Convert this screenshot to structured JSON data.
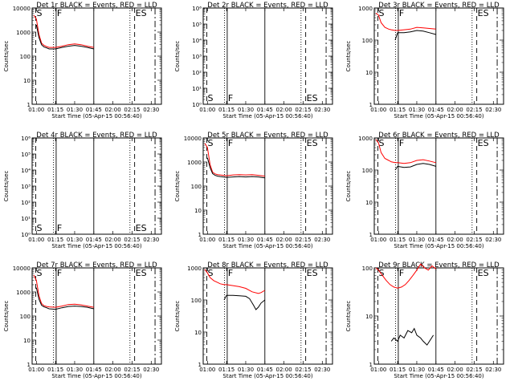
{
  "colors": {
    "events": "#000000",
    "lld": "#ff0000",
    "frame": "#000000"
  },
  "chart_data": [
    {
      "type": "line",
      "title": "Det 1r BLACK = Events, RED = LLD",
      "xlabel": "Start Time (05-Apr-15 00:56:40)",
      "ylabel": "Counts/sec",
      "xlim": [
        "00:56:40",
        "02:38:00"
      ],
      "yscale": "log",
      "ylim": [
        1,
        10000
      ],
      "x_ticks": [
        "01:00",
        "01:15",
        "01:30",
        "01:45",
        "02:00",
        "02:15",
        "02:30"
      ],
      "y_ticks": [
        "1",
        "10",
        "100",
        "1000",
        "10000"
      ],
      "markers": [
        {
          "label": "S",
          "time": "00:59:30"
        },
        {
          "label": "F",
          "time": "01:15:30"
        },
        {
          "label": "ES",
          "time": "02:17:00"
        }
      ],
      "series": [
        {
          "name": "Events",
          "x": [
            "01:00",
            "01:02",
            "01:04",
            "01:06",
            "01:08",
            "01:10",
            "01:15",
            "01:20",
            "01:25",
            "01:30",
            "01:35",
            "01:40",
            "01:45"
          ],
          "y": [
            2000,
            600,
            300,
            240,
            220,
            200,
            200,
            230,
            260,
            280,
            260,
            230,
            200
          ]
        },
        {
          "name": "LLD",
          "x": [
            "00:58",
            "01:00",
            "01:02",
            "01:04",
            "01:06",
            "01:08",
            "01:10",
            "01:15",
            "01:20",
            "01:25",
            "01:30",
            "01:35",
            "01:40",
            "01:45"
          ],
          "y": [
            5000,
            3500,
            800,
            350,
            280,
            250,
            230,
            230,
            260,
            300,
            320,
            300,
            260,
            230
          ]
        }
      ]
    },
    {
      "type": "line",
      "title": "Det 2r BLACK = Events, RED = LLD",
      "xlabel": "Start Time (05-Apr-15 00:56:40)",
      "ylabel": "Counts/sec",
      "xlim": [
        "00:56:40",
        "02:38:00"
      ],
      "yscale": "log",
      "ylim": [
        1,
        1000000
      ],
      "x_ticks": [
        "01:00",
        "01:15",
        "01:30",
        "01:45",
        "02:00",
        "02:15",
        "02:30"
      ],
      "y_ticks": [
        "10⁰",
        "10¹",
        "10²",
        "10³",
        "10⁴",
        "10⁵",
        "10⁶"
      ],
      "markers": [
        {
          "label": "S",
          "time": "00:59:30"
        },
        {
          "label": "F",
          "time": "01:15:30"
        },
        {
          "label": "ES",
          "time": "02:17:00"
        }
      ],
      "series": []
    },
    {
      "type": "line",
      "title": "Det 3r BLACK = Events, RED = LLD",
      "xlabel": "Start Time (05-Apr-15 00:56:40)",
      "ylabel": "Counts/sec",
      "xlim": [
        "00:56:40",
        "02:38:00"
      ],
      "yscale": "log",
      "ylim": [
        1,
        1000
      ],
      "x_ticks": [
        "01:00",
        "01:15",
        "01:30",
        "01:45",
        "02:00",
        "02:15",
        "02:30"
      ],
      "y_ticks": [
        "1",
        "10",
        "100",
        "1000"
      ],
      "markers": [
        {
          "label": "S",
          "time": "00:59:30"
        },
        {
          "label": "F",
          "time": "01:15:30"
        },
        {
          "label": "ES",
          "time": "02:17:00"
        }
      ],
      "series": [
        {
          "name": "Events",
          "x": [
            "01:13",
            "01:15",
            "01:20",
            "01:25",
            "01:30",
            "01:35",
            "01:40",
            "01:45"
          ],
          "y": [
            100,
            170,
            170,
            180,
            200,
            190,
            170,
            150
          ]
        },
        {
          "name": "LLD",
          "x": [
            "00:58",
            "01:00",
            "01:02",
            "01:05",
            "01:08",
            "01:10",
            "01:13",
            "01:15",
            "01:20",
            "01:25",
            "01:30",
            "01:35",
            "01:40",
            "01:45"
          ],
          "y": [
            700,
            600,
            350,
            250,
            220,
            210,
            200,
            200,
            210,
            220,
            250,
            240,
            230,
            220
          ]
        }
      ]
    },
    {
      "type": "line",
      "title": "Det 4r BLACK = Events, RED = LLD",
      "xlabel": "Start Time (05-Apr-15 00:56:40)",
      "ylabel": "Counts/sec",
      "xlim": [
        "00:56:40",
        "02:38:00"
      ],
      "yscale": "log",
      "ylim": [
        1,
        1000000
      ],
      "x_ticks": [
        "01:00",
        "01:15",
        "01:30",
        "01:45",
        "02:00",
        "02:15",
        "02:30"
      ],
      "y_ticks": [
        "10⁰",
        "10¹",
        "10²",
        "10³",
        "10⁴",
        "10⁵",
        "10⁶"
      ],
      "markers": [
        {
          "label": "S",
          "time": "00:59:30"
        },
        {
          "label": "F",
          "time": "01:15:30"
        },
        {
          "label": "ES",
          "time": "02:17:00"
        }
      ],
      "series": []
    },
    {
      "type": "line",
      "title": "Det 5r BLACK = Events, RED = LLD",
      "xlabel": "Start Time (05-Apr-15 00:56:40)",
      "ylabel": "Counts/sec",
      "xlim": [
        "00:56:40",
        "02:38:00"
      ],
      "yscale": "log",
      "ylim": [
        1,
        10000
      ],
      "x_ticks": [
        "01:00",
        "01:15",
        "01:30",
        "01:45",
        "02:00",
        "02:15",
        "02:30"
      ],
      "y_ticks": [
        "1",
        "10",
        "100",
        "1000",
        "10000"
      ],
      "markers": [
        {
          "label": "S",
          "time": "00:59:30"
        },
        {
          "label": "F",
          "time": "01:15:30"
        },
        {
          "label": "ES",
          "time": "02:17:00"
        }
      ],
      "series": [
        {
          "name": "Events",
          "x": [
            "01:00",
            "01:02",
            "01:04",
            "01:06",
            "01:08",
            "01:10",
            "01:15",
            "01:20",
            "01:25",
            "01:30",
            "01:35",
            "01:40",
            "01:45"
          ],
          "y": [
            1500,
            600,
            330,
            280,
            260,
            250,
            230,
            240,
            250,
            240,
            250,
            240,
            220
          ]
        },
        {
          "name": "LLD",
          "x": [
            "00:58",
            "01:00",
            "01:02",
            "01:04",
            "01:06",
            "01:08",
            "01:10",
            "01:15",
            "01:20",
            "01:25",
            "01:30",
            "01:35",
            "01:40",
            "01:45"
          ],
          "y": [
            6000,
            4000,
            800,
            380,
            320,
            300,
            290,
            270,
            290,
            300,
            290,
            300,
            280,
            260
          ]
        }
      ]
    },
    {
      "type": "line",
      "title": "Det 6r BLACK = Events, RED = LLD",
      "xlabel": "Start Time (05-Apr-15 00:56:40)",
      "ylabel": "Counts/sec",
      "xlim": [
        "00:56:40",
        "02:38:00"
      ],
      "yscale": "log",
      "ylim": [
        1,
        1000
      ],
      "x_ticks": [
        "01:00",
        "01:15",
        "01:30",
        "01:45",
        "02:00",
        "02:15",
        "02:30"
      ],
      "y_ticks": [
        "1",
        "10",
        "100",
        "1000"
      ],
      "markers": [
        {
          "label": "S",
          "time": "00:59:30"
        },
        {
          "label": "F",
          "time": "01:15:30"
        },
        {
          "label": "ES",
          "time": "02:17:00"
        }
      ],
      "series": [
        {
          "name": "Events",
          "x": [
            "01:13",
            "01:15",
            "01:20",
            "01:25",
            "01:30",
            "01:35",
            "01:40",
            "01:45"
          ],
          "y": [
            100,
            130,
            120,
            125,
            150,
            160,
            150,
            130
          ]
        },
        {
          "name": "LLD",
          "x": [
            "00:58",
            "01:00",
            "01:02",
            "01:05",
            "01:08",
            "01:10",
            "01:13",
            "01:15",
            "01:20",
            "01:25",
            "01:30",
            "01:35",
            "01:40",
            "01:45"
          ],
          "y": [
            900,
            700,
            350,
            230,
            200,
            180,
            170,
            170,
            160,
            170,
            200,
            210,
            190,
            170
          ]
        }
      ]
    },
    {
      "type": "line",
      "title": "Det 7r BLACK = Events, RED = LLD",
      "xlabel": "Start Time (05-Apr-15 00:56:40)",
      "ylabel": "Counts/sec",
      "xlim": [
        "00:56:40",
        "02:38:00"
      ],
      "yscale": "log",
      "ylim": [
        1,
        10000
      ],
      "x_ticks": [
        "01:00",
        "01:15",
        "01:30",
        "01:45",
        "02:00",
        "02:15",
        "02:30"
      ],
      "y_ticks": [
        "1",
        "10",
        "100",
        "1000",
        "10000"
      ],
      "markers": [
        {
          "label": "S",
          "time": "00:59:30"
        },
        {
          "label": "F",
          "time": "01:15:30"
        },
        {
          "label": "ES",
          "time": "02:17:00"
        }
      ],
      "series": [
        {
          "name": "Events",
          "x": [
            "01:00",
            "01:02",
            "01:04",
            "01:06",
            "01:08",
            "01:10",
            "01:15",
            "01:20",
            "01:25",
            "01:30",
            "01:35",
            "01:40",
            "01:45"
          ],
          "y": [
            1500,
            500,
            280,
            240,
            220,
            200,
            190,
            220,
            250,
            260,
            250,
            230,
            200
          ]
        },
        {
          "name": "LLD",
          "x": [
            "00:58",
            "01:00",
            "01:02",
            "01:04",
            "01:06",
            "01:08",
            "01:10",
            "01:15",
            "01:20",
            "01:25",
            "01:30",
            "01:35",
            "01:40",
            "01:45"
          ],
          "y": [
            5000,
            3000,
            700,
            330,
            270,
            250,
            240,
            230,
            260,
            300,
            310,
            290,
            260,
            230
          ]
        }
      ]
    },
    {
      "type": "line",
      "title": "Det 8r BLACK = Events, RED = LLD",
      "xlabel": "Start Time (05-Apr-15 00:56:40)",
      "ylabel": "Counts/sec",
      "xlim": [
        "00:56:40",
        "02:38:00"
      ],
      "yscale": "log",
      "ylim": [
        1,
        1000
      ],
      "x_ticks": [
        "01:00",
        "01:15",
        "01:30",
        "01:45",
        "02:00",
        "02:15",
        "02:30"
      ],
      "y_ticks": [
        "1",
        "10",
        "100",
        "1000"
      ],
      "markers": [
        {
          "label": "S",
          "time": "00:59:30"
        },
        {
          "label": "F",
          "time": "01:15:30"
        },
        {
          "label": "ES",
          "time": "02:17:00"
        }
      ],
      "series": [
        {
          "name": "Events",
          "x": [
            "01:13",
            "01:15",
            "01:20",
            "01:25",
            "01:30",
            "01:33",
            "01:36",
            "01:38",
            "01:40",
            "01:42",
            "01:45"
          ],
          "y": [
            100,
            140,
            140,
            135,
            130,
            110,
            70,
            50,
            60,
            80,
            100
          ]
        },
        {
          "name": "LLD",
          "x": [
            "00:58",
            "01:00",
            "01:02",
            "01:05",
            "01:08",
            "01:10",
            "01:13",
            "01:15",
            "01:20",
            "01:25",
            "01:30",
            "01:35",
            "01:40",
            "01:42",
            "01:45"
          ],
          "y": [
            900,
            700,
            500,
            400,
            350,
            320,
            300,
            300,
            280,
            260,
            230,
            180,
            160,
            170,
            200
          ]
        }
      ]
    },
    {
      "type": "line",
      "title": "Det 9r BLACK = Events, RED = LLD",
      "xlabel": "Start Time (05-Apr-15 00:56:40)",
      "ylabel": "Counts/sec",
      "xlim": [
        "00:56:40",
        "02:38:00"
      ],
      "yscale": "log",
      "ylim": [
        1,
        100
      ],
      "x_ticks": [
        "01:00",
        "01:15",
        "01:30",
        "01:45",
        "02:00",
        "02:15",
        "02:30"
      ],
      "y_ticks": [
        "1",
        "10",
        "100"
      ],
      "markers": [
        {
          "label": "S",
          "time": "00:59:30"
        },
        {
          "label": "F",
          "time": "01:15:30"
        },
        {
          "label": "ES",
          "time": "02:17:00"
        }
      ],
      "series": [
        {
          "name": "Events",
          "x": [
            "01:10",
            "01:12",
            "01:15",
            "01:17",
            "01:20",
            "01:23",
            "01:26",
            "01:28",
            "01:30",
            "01:33",
            "01:35",
            "01:38",
            "01:40",
            "01:43"
          ],
          "y": [
            3,
            3.5,
            3,
            4,
            3.5,
            5,
            4.5,
            5.5,
            4,
            3.5,
            3,
            2.5,
            3,
            4
          ]
        },
        {
          "name": "LLD",
          "x": [
            "00:58",
            "01:00",
            "01:03",
            "01:06",
            "01:09",
            "01:12",
            "01:15",
            "01:18",
            "01:21",
            "01:24",
            "01:27",
            "01:30",
            "01:33",
            "01:36",
            "01:39",
            "01:42",
            "01:45"
          ],
          "y": [
            100,
            90,
            70,
            55,
            45,
            40,
            38,
            40,
            45,
            55,
            70,
            90,
            120,
            100,
            90,
            110,
            95
          ]
        }
      ]
    }
  ]
}
